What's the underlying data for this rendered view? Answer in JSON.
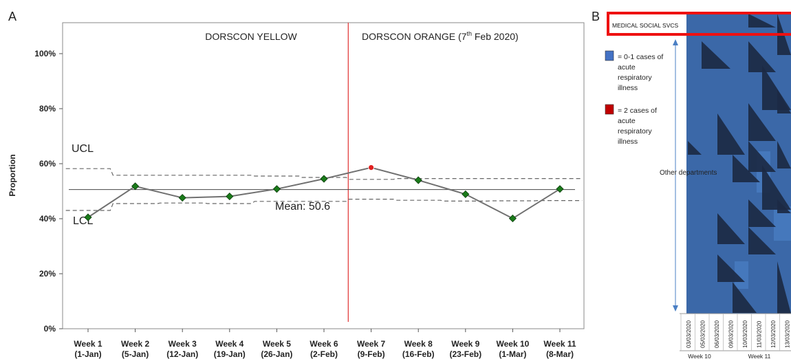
{
  "panel_a": {
    "label": "A",
    "phase_1": "DORSCON YELLOW",
    "phase_2_prefix": "DORSCON ORANGE (7",
    "phase_2_sup": "th",
    "phase_2_suffix": " Feb 2020)",
    "ucl_label": "UCL",
    "lcl_label": "LCL",
    "mean_label": "Mean: 50.6",
    "colors": {
      "in_control": "#1a7a1a",
      "out_of_control": "#e02020",
      "line": "#707070",
      "phase_divider": "#e03030"
    }
  },
  "panel_b": {
    "label": "B",
    "highlight_label": "MEDICAL SOCIAL SVCS",
    "legend": [
      {
        "color": "#4472c4",
        "text_lines": [
          "= 0-1 cases of",
          "acute",
          "respiratory",
          "illness"
        ]
      },
      {
        "color": "#c00000",
        "text_lines": [
          "= 2 cases of",
          "acute",
          "respiratory",
          "illness"
        ]
      }
    ],
    "other_label": "Other departments",
    "dates": [
      "03/03/2020",
      "05/03/2020",
      "06/03/2020",
      "09/03/2020",
      "10/03/2020",
      "11/03/2020",
      "12/03/2020",
      "13/03/2020"
    ],
    "weeks": [
      "Week 10",
      "Week 11"
    ],
    "colors": {
      "cell": "#3b68a8",
      "dark": "#1c2a44",
      "light": "#4a7fc4",
      "highlight_box": "#ee1111"
    }
  },
  "chart_data": [
    {
      "type": "line",
      "title": "",
      "ylabel": "Proportion",
      "xlabel": "",
      "ylim": [
        0,
        110
      ],
      "yticks": [
        0,
        20,
        40,
        60,
        80,
        100
      ],
      "ytick_labels": [
        "0%",
        "20%",
        "40%",
        "60%",
        "80%",
        "100%"
      ],
      "categories": [
        [
          "Week 1",
          "(1-Jan)"
        ],
        [
          "Week 2",
          "(5-Jan)"
        ],
        [
          "Week 3",
          "(12-Jan)"
        ],
        [
          "Week 4",
          "(19-Jan)"
        ],
        [
          "Week 5",
          "(26-Jan)"
        ],
        [
          "Week 6",
          "(2-Feb)"
        ],
        [
          "Week 7",
          "(9-Feb)"
        ],
        [
          "Week 8",
          "(16-Feb)"
        ],
        [
          "Week 9",
          "(23-Feb)"
        ],
        [
          "Week 10",
          "(1-Mar)"
        ],
        [
          "Week 11",
          "(8-Mar)"
        ]
      ],
      "series": [
        {
          "values": [
            40.5,
            51.8,
            47.6,
            48.1,
            50.8,
            54.5,
            58.6,
            54.0,
            48.9,
            40.1,
            50.8
          ]
        },
        {
          "values": [
            58.2,
            55.8,
            55.8,
            55.8,
            55.5,
            55.0,
            54.3,
            54.6,
            54.6,
            54.6,
            54.6
          ]
        },
        {
          "values": [
            43.0,
            45.5,
            45.7,
            45.5,
            46.3,
            46.3,
            47.1,
            46.7,
            46.4,
            46.5,
            46.6
          ]
        }
      ],
      "mean": 50.6,
      "out_of_control_index": 6,
      "phase_change_after_index": 5,
      "grid": false
    },
    {
      "type": "heatmap",
      "title": "",
      "columns": [
        "03/03/2020",
        "05/03/2020",
        "06/03/2020",
        "09/03/2020",
        "10/03/2020",
        "11/03/2020",
        "12/03/2020",
        "13/03/2020"
      ],
      "rows_label": "Other departments",
      "highlight_row": "MEDICAL SOCIAL SVCS"
    }
  ]
}
